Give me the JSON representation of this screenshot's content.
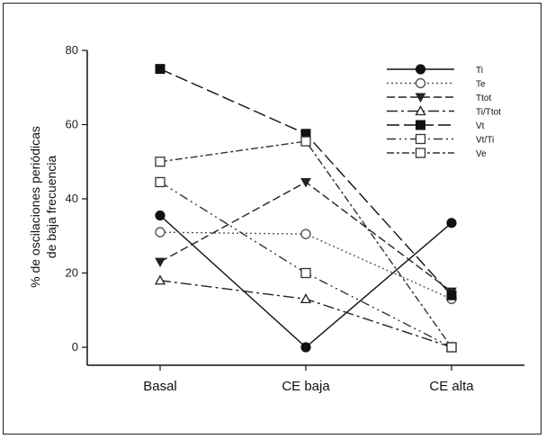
{
  "chart_data": {
    "type": "line",
    "categories": [
      "Basal",
      "CE baja",
      "CE alta"
    ],
    "ylabel_lines": [
      "% de oscilaciones periódicas",
      "de baja frecuencia"
    ],
    "ylim": [
      0,
      80
    ],
    "yticks": [
      0,
      20,
      40,
      60,
      80
    ],
    "grid": false,
    "legend_position": "top-right",
    "series": [
      {
        "name": "Ti",
        "values": [
          35.5,
          0,
          33.5
        ],
        "marker": "circle-filled",
        "dash": "solid",
        "color": "#111111"
      },
      {
        "name": "Te",
        "values": [
          31,
          30.5,
          13
        ],
        "marker": "circle-open",
        "dash": "dotted",
        "color": "#555555"
      },
      {
        "name": "Ttot",
        "values": [
          23,
          44.5,
          15
        ],
        "marker": "triangle-down",
        "dash": "dashed",
        "color": "#222222"
      },
      {
        "name": "Ti/Ttot",
        "values": [
          18,
          13,
          0
        ],
        "marker": "triangle-open",
        "dash": "dashdot",
        "color": "#222222"
      },
      {
        "name": "Vt",
        "values": [
          75,
          57.5,
          14
        ],
        "marker": "square-filled",
        "dash": "longdash",
        "color": "#111111"
      },
      {
        "name": "Vt/Ti",
        "values": [
          44.5,
          20,
          0
        ],
        "marker": "square-open",
        "dash": "dashdot2",
        "color": "#333333"
      },
      {
        "name": "Ve",
        "values": [
          50,
          55.5,
          0
        ],
        "marker": "square-open",
        "dash": "dashdot3",
        "color": "#333333"
      }
    ]
  }
}
